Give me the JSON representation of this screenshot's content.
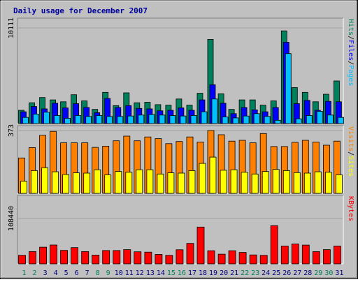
{
  "title": "Daily usage for December 2007",
  "colors": {
    "background": "#c0c0c0",
    "title": "#0000a0",
    "hits": "#00805c",
    "files": "#0000ff",
    "pages": "#00c0ff",
    "visits": "#ff8000",
    "sites": "#ffff00",
    "kbytes": "#ff0000",
    "weekend": "#00805c",
    "weekday": "#000080"
  },
  "chart_data": [
    {
      "type": "bar",
      "panel": "top",
      "ymax_label": "10111",
      "ylim": [
        0,
        10111
      ],
      "categories": [
        "1",
        "2",
        "3",
        "4",
        "5",
        "6",
        "7",
        "8",
        "9",
        "10",
        "11",
        "12",
        "13",
        "14",
        "15",
        "16",
        "17",
        "18",
        "19",
        "20",
        "21",
        "22",
        "23",
        "24",
        "25",
        "26",
        "27",
        "28",
        "29",
        "30",
        "31"
      ],
      "weekend_days": [
        "1",
        "2",
        "8",
        "9",
        "15",
        "16",
        "22",
        "23",
        "29",
        "30"
      ],
      "legend": [
        {
          "label": "Hits",
          "color": "#00805c"
        },
        {
          "label": "Files",
          "color": "#0000ff"
        },
        {
          "label": "Pages",
          "color": "#00c0ff"
        }
      ],
      "legend_separator": "/",
      "series": [
        {
          "name": "Hits",
          "values": [
            1400,
            2200,
            2750,
            2500,
            2300,
            3050,
            2400,
            1500,
            3300,
            1900,
            3250,
            2200,
            2250,
            2000,
            1950,
            2600,
            1950,
            3200,
            8900,
            3150,
            1500,
            2500,
            2500,
            1950,
            2400,
            9800,
            3800,
            3300,
            2300,
            3100,
            4500
          ]
        },
        {
          "name": "Files",
          "values": [
            1250,
            1800,
            1550,
            2150,
            1650,
            2100,
            1700,
            1150,
            2650,
            1700,
            1900,
            1600,
            1550,
            1350,
            1400,
            1650,
            1400,
            2500,
            4100,
            2150,
            1050,
            1700,
            1450,
            1250,
            1700,
            8600,
            2100,
            2450,
            1400,
            2350,
            2300
          ]
        },
        {
          "name": "Pages",
          "values": [
            650,
            1000,
            1200,
            850,
            550,
            850,
            750,
            850,
            750,
            750,
            800,
            900,
            950,
            900,
            850,
            800,
            850,
            1250,
            2600,
            700,
            600,
            800,
            1050,
            750,
            350,
            7400,
            500,
            850,
            1300,
            900,
            650
          ]
        }
      ]
    },
    {
      "type": "bar",
      "panel": "middle",
      "ymax_label": "373",
      "ylim": [
        0,
        373
      ],
      "categories": [
        "1",
        "2",
        "3",
        "4",
        "5",
        "6",
        "7",
        "8",
        "9",
        "10",
        "11",
        "12",
        "13",
        "14",
        "15",
        "16",
        "17",
        "18",
        "19",
        "20",
        "21",
        "22",
        "23",
        "24",
        "25",
        "26",
        "27",
        "28",
        "29",
        "30",
        "31"
      ],
      "legend": [
        {
          "label": "Visits",
          "color": "#ff8000"
        },
        {
          "label": "Sites",
          "color": "#ffff00"
        }
      ],
      "legend_separator": "/",
      "series": [
        {
          "name": "Visits",
          "values": [
            210,
            272,
            345,
            368,
            300,
            300,
            300,
            273,
            280,
            312,
            340,
            312,
            335,
            325,
            295,
            308,
            335,
            305,
            373,
            348,
            310,
            315,
            300,
            355,
            278,
            278,
            303,
            315,
            305,
            286,
            310
          ]
        },
        {
          "name": "Sites",
          "values": [
            72,
            135,
            152,
            128,
            112,
            122,
            120,
            140,
            110,
            130,
            125,
            140,
            140,
            115,
            122,
            120,
            135,
            178,
            215,
            137,
            140,
            125,
            115,
            130,
            142,
            135,
            123,
            120,
            128,
            125,
            110
          ]
        }
      ]
    },
    {
      "type": "bar",
      "panel": "bottom",
      "ymax_label": "108440",
      "ylim": [
        0,
        108440
      ],
      "categories": [
        "1",
        "2",
        "3",
        "4",
        "5",
        "6",
        "7",
        "8",
        "9",
        "10",
        "11",
        "12",
        "13",
        "14",
        "15",
        "16",
        "17",
        "18",
        "19",
        "20",
        "21",
        "22",
        "23",
        "24",
        "25",
        "26",
        "27",
        "28",
        "29",
        "30",
        "31"
      ],
      "legend": [
        {
          "label": "KBytes",
          "color": "#ff0000"
        }
      ],
      "series": [
        {
          "name": "KBytes",
          "values": [
            20600,
            29300,
            39800,
            45000,
            32200,
            38800,
            29300,
            21000,
            31800,
            31800,
            34100,
            28900,
            28100,
            22600,
            20300,
            33700,
            48800,
            88000,
            31300,
            23200,
            31300,
            27300,
            21400,
            20300,
            91200,
            42600,
            47600,
            44800,
            29200,
            34000,
            42600
          ]
        }
      ]
    }
  ]
}
